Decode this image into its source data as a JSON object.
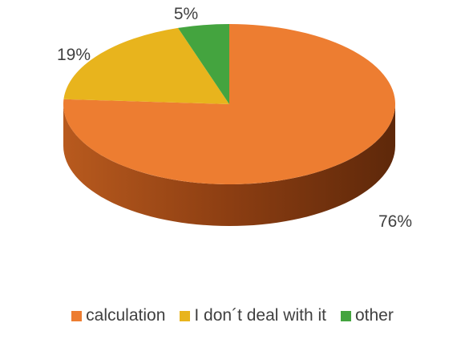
{
  "chart_data": {
    "type": "pie",
    "title": "",
    "categories": [
      "calculation",
      "I don´t deal with it",
      "other"
    ],
    "values": [
      76,
      19,
      5
    ],
    "labels": [
      "76%",
      "19%",
      "5%"
    ],
    "colors": [
      "#ED7D31",
      "#E8B41D",
      "#44A43F"
    ],
    "side_colors": [
      "#9E4717",
      "#9E7A10",
      "#2E7A2A"
    ],
    "legend_position": "bottom",
    "style": "3d"
  }
}
